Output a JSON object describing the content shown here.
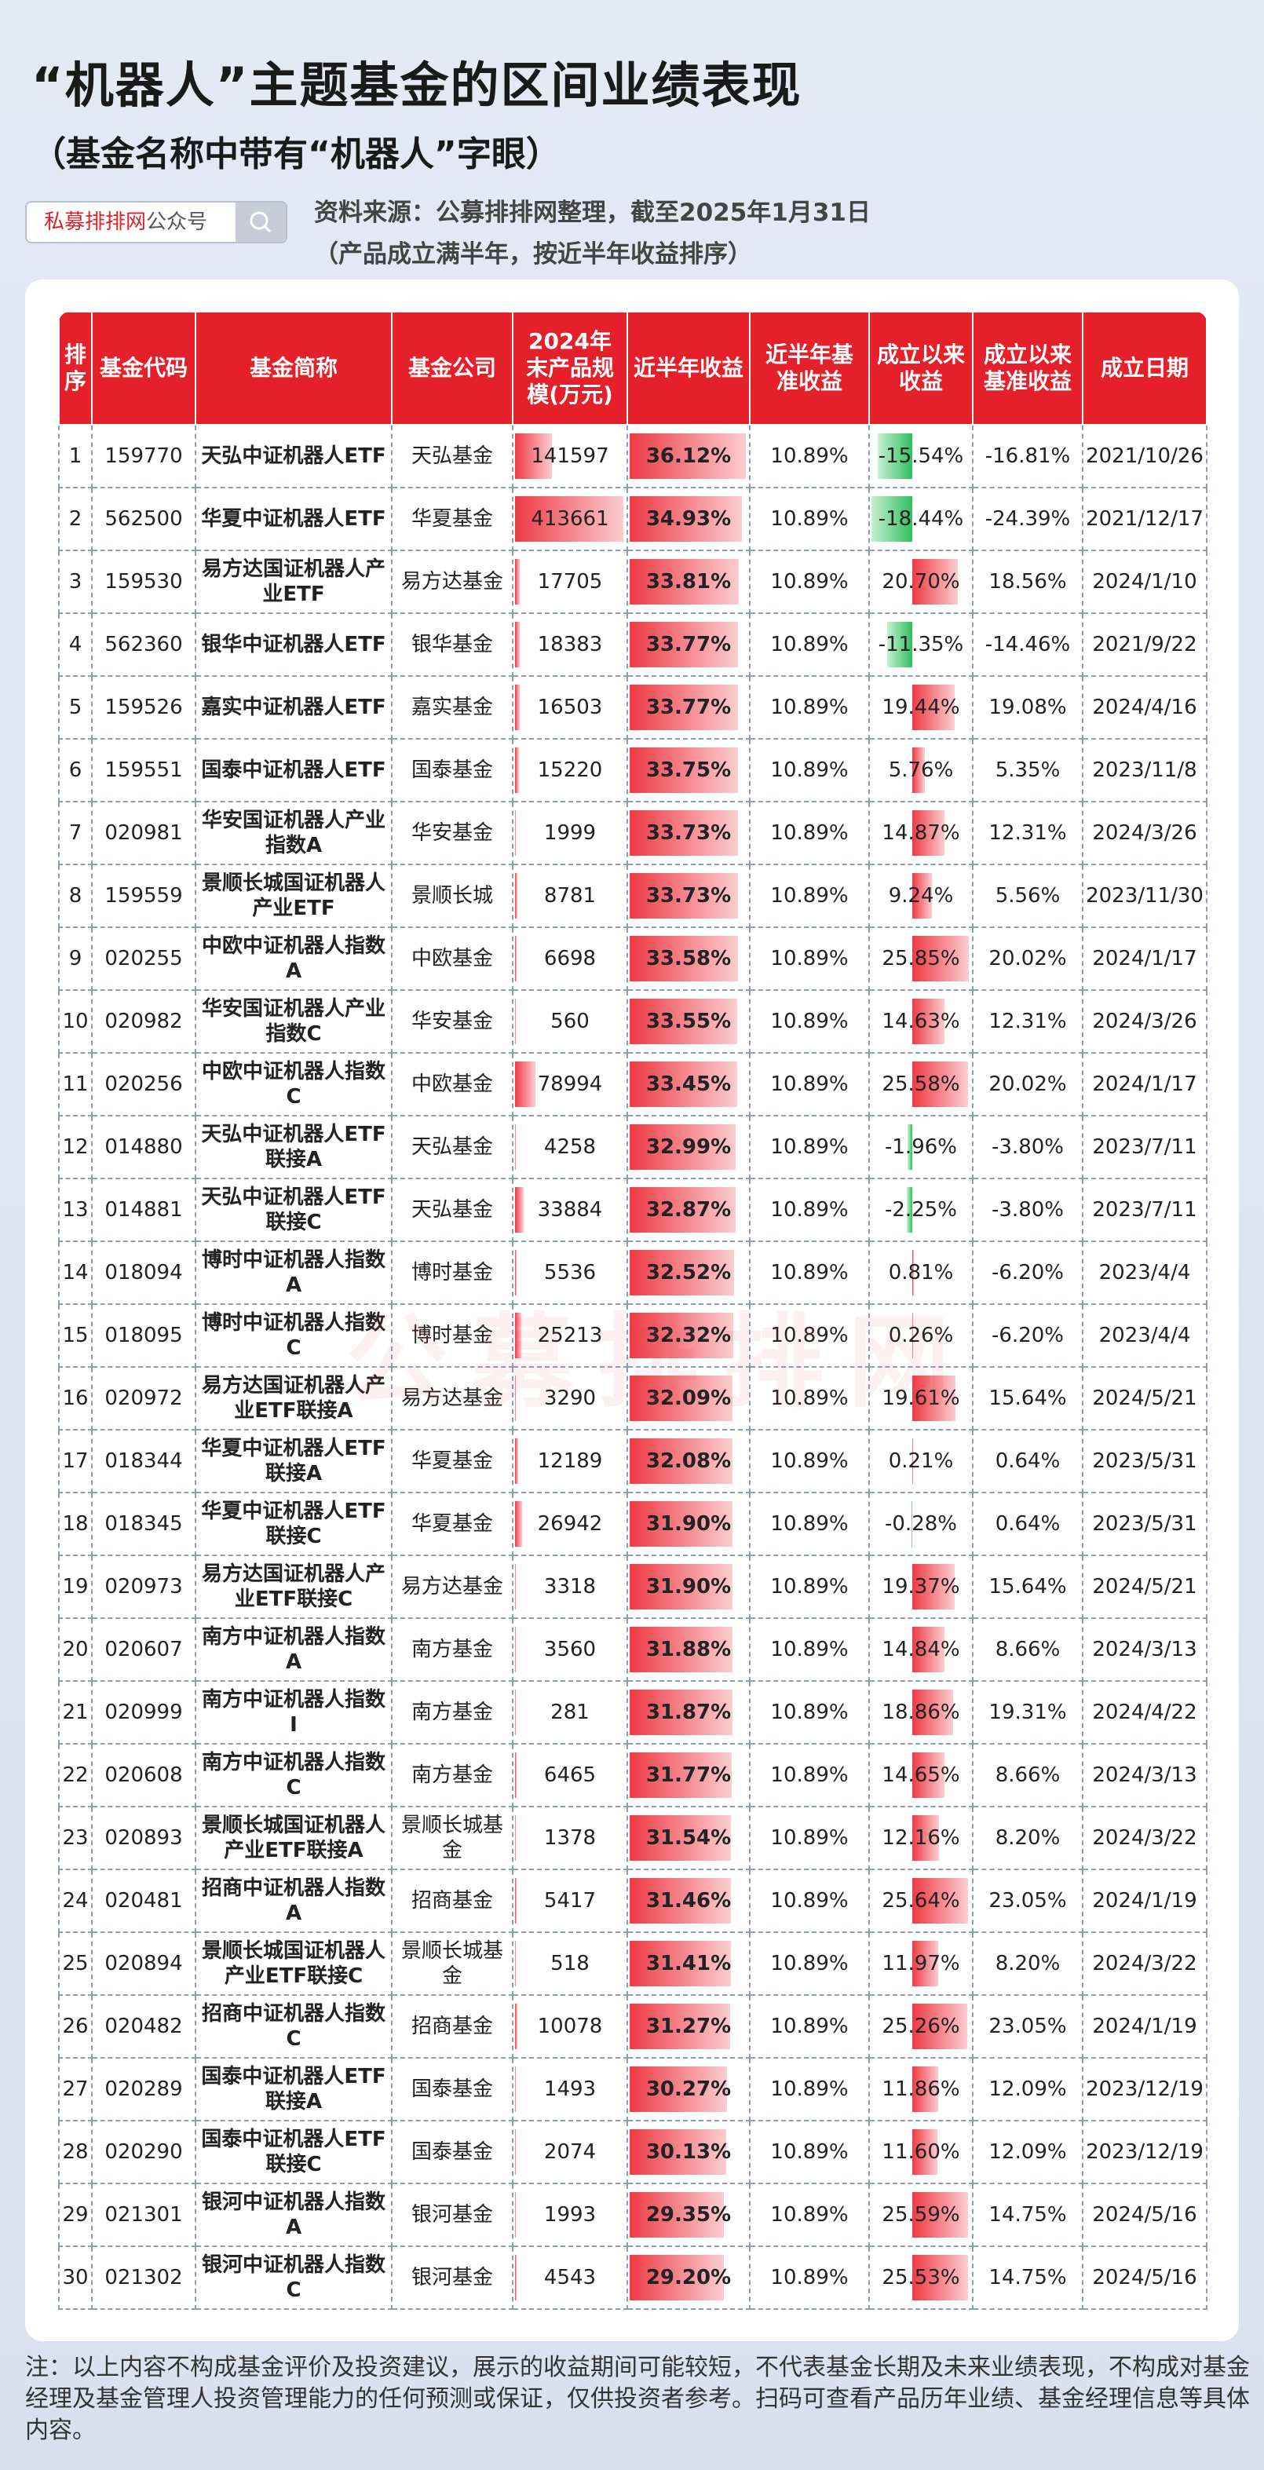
{
  "header": {
    "title": "“机器人”主题基金的区间业绩表现",
    "subtitle": "（基金名称中带有“机器人”字眼）",
    "search_brand": "私募排排网",
    "search_suffix": "公众号",
    "source": "资料来源：公募排排网整理，截至2025年1月31日",
    "source_note": "（产品成立满半年，按近半年收益排序）"
  },
  "watermark": "公募排排网",
  "table": {
    "columns": [
      "排序",
      "基金代码",
      "基金简称",
      "基金公司",
      "2024年末产品规模(万元)",
      "近半年收益",
      "近半年基准收益",
      "成立以来收益",
      "成立以来基准收益",
      "成立日期"
    ],
    "rows": [
      [
        "1",
        "159770",
        "天弘中证机器人ETF",
        "天弘基金",
        "141597",
        "36.12%",
        "10.89%",
        "-15.54%",
        "-16.81%",
        "2021/10/26"
      ],
      [
        "2",
        "562500",
        "华夏中证机器人ETF",
        "华夏基金",
        "413661",
        "34.93%",
        "10.89%",
        "-18.44%",
        "-24.39%",
        "2021/12/17"
      ],
      [
        "3",
        "159530",
        "易方达国证机器人产业ETF",
        "易方达基金",
        "17705",
        "33.81%",
        "10.89%",
        "20.70%",
        "18.56%",
        "2024/1/10"
      ],
      [
        "4",
        "562360",
        "银华中证机器人ETF",
        "银华基金",
        "18383",
        "33.77%",
        "10.89%",
        "-11.35%",
        "-14.46%",
        "2021/9/22"
      ],
      [
        "5",
        "159526",
        "嘉实中证机器人ETF",
        "嘉实基金",
        "16503",
        "33.77%",
        "10.89%",
        "19.44%",
        "19.08%",
        "2024/4/16"
      ],
      [
        "6",
        "159551",
        "国泰中证机器人ETF",
        "国泰基金",
        "15220",
        "33.75%",
        "10.89%",
        "5.76%",
        "5.35%",
        "2023/11/8"
      ],
      [
        "7",
        "020981",
        "华安国证机器人产业指数A",
        "华安基金",
        "1999",
        "33.73%",
        "10.89%",
        "14.87%",
        "12.31%",
        "2024/3/26"
      ],
      [
        "8",
        "159559",
        "景顺长城国证机器人产业ETF",
        "景顺长城",
        "8781",
        "33.73%",
        "10.89%",
        "9.24%",
        "5.56%",
        "2023/11/30"
      ],
      [
        "9",
        "020255",
        "中欧中证机器人指数A",
        "中欧基金",
        "6698",
        "33.58%",
        "10.89%",
        "25.85%",
        "20.02%",
        "2024/1/17"
      ],
      [
        "10",
        "020982",
        "华安国证机器人产业指数C",
        "华安基金",
        "560",
        "33.55%",
        "10.89%",
        "14.63%",
        "12.31%",
        "2024/3/26"
      ],
      [
        "11",
        "020256",
        "中欧中证机器人指数C",
        "中欧基金",
        "78994",
        "33.45%",
        "10.89%",
        "25.58%",
        "20.02%",
        "2024/1/17"
      ],
      [
        "12",
        "014880",
        "天弘中证机器人ETF联接A",
        "天弘基金",
        "4258",
        "32.99%",
        "10.89%",
        "-1.96%",
        "-3.80%",
        "2023/7/11"
      ],
      [
        "13",
        "014881",
        "天弘中证机器人ETF联接C",
        "天弘基金",
        "33884",
        "32.87%",
        "10.89%",
        "-2.25%",
        "-3.80%",
        "2023/7/11"
      ],
      [
        "14",
        "018094",
        "博时中证机器人指数A",
        "博时基金",
        "5536",
        "32.52%",
        "10.89%",
        "0.81%",
        "-6.20%",
        "2023/4/4"
      ],
      [
        "15",
        "018095",
        "博时中证机器人指数C",
        "博时基金",
        "25213",
        "32.32%",
        "10.89%",
        "0.26%",
        "-6.20%",
        "2023/4/4"
      ],
      [
        "16",
        "020972",
        "易方达国证机器人产业ETF联接A",
        "易方达基金",
        "3290",
        "32.09%",
        "10.89%",
        "19.61%",
        "15.64%",
        "2024/5/21"
      ],
      [
        "17",
        "018344",
        "华夏中证机器人ETF联接A",
        "华夏基金",
        "12189",
        "32.08%",
        "10.89%",
        "0.21%",
        "0.64%",
        "2023/5/31"
      ],
      [
        "18",
        "018345",
        "华夏中证机器人ETF联接C",
        "华夏基金",
        "26942",
        "31.90%",
        "10.89%",
        "-0.28%",
        "0.64%",
        "2023/5/31"
      ],
      [
        "19",
        "020973",
        "易方达国证机器人产业ETF联接C",
        "易方达基金",
        "3318",
        "31.90%",
        "10.89%",
        "19.37%",
        "15.64%",
        "2024/5/21"
      ],
      [
        "20",
        "020607",
        "南方中证机器人指数A",
        "南方基金",
        "3560",
        "31.88%",
        "10.89%",
        "14.84%",
        "8.66%",
        "2024/3/13"
      ],
      [
        "21",
        "020999",
        "南方中证机器人指数I",
        "南方基金",
        "281",
        "31.87%",
        "10.89%",
        "18.86%",
        "19.31%",
        "2024/4/22"
      ],
      [
        "22",
        "020608",
        "南方中证机器人指数C",
        "南方基金",
        "6465",
        "31.77%",
        "10.89%",
        "14.65%",
        "8.66%",
        "2024/3/13"
      ],
      [
        "23",
        "020893",
        "景顺长城国证机器人产业ETF联接A",
        "景顺长城基金",
        "1378",
        "31.54%",
        "10.89%",
        "12.16%",
        "8.20%",
        "2024/3/22"
      ],
      [
        "24",
        "020481",
        "招商中证机器人指数A",
        "招商基金",
        "5417",
        "31.46%",
        "10.89%",
        "25.64%",
        "23.05%",
        "2024/1/19"
      ],
      [
        "25",
        "020894",
        "景顺长城国证机器人产业ETF联接C",
        "景顺长城基金",
        "518",
        "31.41%",
        "10.89%",
        "11.97%",
        "8.20%",
        "2024/3/22"
      ],
      [
        "26",
        "020482",
        "招商中证机器人指数C",
        "招商基金",
        "10078",
        "31.27%",
        "10.89%",
        "25.26%",
        "23.05%",
        "2024/1/19"
      ],
      [
        "27",
        "020289",
        "国泰中证机器人ETF联接A",
        "国泰基金",
        "1493",
        "30.27%",
        "10.89%",
        "11.86%",
        "12.09%",
        "2023/12/19"
      ],
      [
        "28",
        "020290",
        "国泰中证机器人ETF联接C",
        "国泰基金",
        "2074",
        "30.13%",
        "10.89%",
        "11.60%",
        "12.09%",
        "2023/12/19"
      ],
      [
        "29",
        "021301",
        "银河中证机器人指数A",
        "银河基金",
        "1993",
        "29.35%",
        "10.89%",
        "25.59%",
        "14.75%",
        "2024/5/16"
      ],
      [
        "30",
        "021302",
        "银河中证机器人指数C",
        "银河基金",
        "4543",
        "29.20%",
        "10.89%",
        "25.53%",
        "14.75%",
        "2024/5/16"
      ]
    ]
  },
  "footer": "注：以上内容不构成基金评价及投资建议，展示的收益期间可能较短，不代表基金长期及未来业绩表现，不构成对基金经理及基金管理人投资管理能力的任何预测或保证，仅供投资者参考。扫码可查看产品历年业绩、基金经理信息等具体内容。"
}
